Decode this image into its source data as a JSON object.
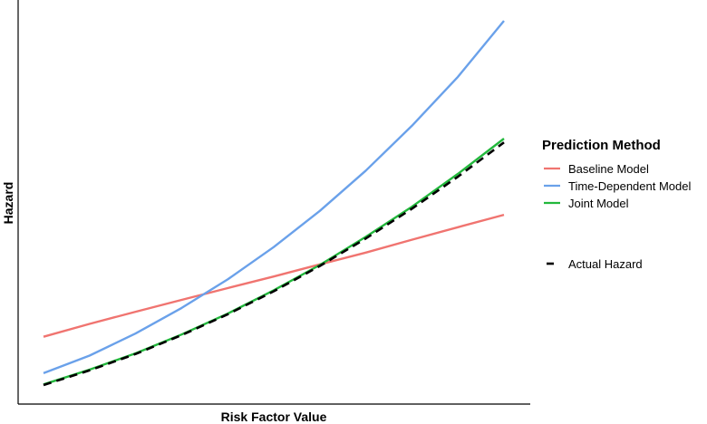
{
  "chart_data": {
    "type": "line",
    "title": "",
    "xlabel": "Risk Factor Value",
    "ylabel": "Hazard",
    "grid": false,
    "legend_placement": "right",
    "xlim": [
      0,
      10
    ],
    "ylim": [
      0,
      10
    ],
    "x": [
      0,
      1,
      2,
      3,
      4,
      5,
      6,
      7,
      8,
      9,
      10
    ],
    "series": [
      {
        "name": "Baseline Model",
        "color": "#f07470",
        "style": "solid",
        "values": [
          1.88,
          2.28,
          2.66,
          3.03,
          3.4,
          3.76,
          4.14,
          4.51,
          4.91,
          5.3,
          5.69
        ]
      },
      {
        "name": "Time-Dependent Model",
        "color": "#6aa1ea",
        "style": "solid",
        "values": [
          0.74,
          1.29,
          1.98,
          2.78,
          3.67,
          4.68,
          5.81,
          7.07,
          8.47,
          10.0,
          11.75
        ]
      },
      {
        "name": "Joint Model",
        "color": "#22b83c",
        "style": "solid",
        "values": [
          0.39,
          0.85,
          1.36,
          1.95,
          2.6,
          3.33,
          4.12,
          5.0,
          5.94,
          6.97,
          8.07
        ]
      },
      {
        "name": "Actual Hazard",
        "color": "#000000",
        "style": "dashed",
        "values": [
          0.37,
          0.83,
          1.34,
          1.93,
          2.58,
          3.3,
          4.09,
          4.95,
          5.88,
          6.88,
          7.95
        ]
      }
    ],
    "legend": {
      "title": "Prediction Method",
      "entries": [
        "Baseline Model",
        "Time-Dependent Model",
        "Joint Model",
        "Actual Hazard"
      ]
    }
  }
}
